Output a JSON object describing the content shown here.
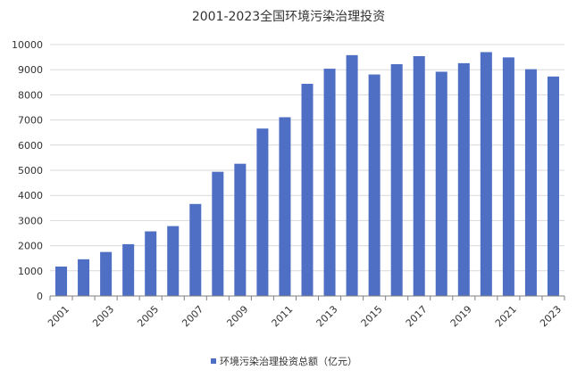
{
  "chart_data": {
    "type": "bar",
    "title": "2001-2023全国环境污染治理投资",
    "xlabel": "",
    "ylabel": "",
    "ylim": [
      0,
      10000
    ],
    "yticks": [
      0,
      1000,
      2000,
      3000,
      4000,
      5000,
      6000,
      7000,
      8000,
      9000,
      10000
    ],
    "categories": [
      "2001",
      "2002",
      "2003",
      "2004",
      "2005",
      "2006",
      "2007",
      "2008",
      "2009",
      "2010",
      "2011",
      "2012",
      "2013",
      "2014",
      "2015",
      "2016",
      "2017",
      "2018",
      "2019",
      "2020",
      "2021",
      "2022",
      "2023"
    ],
    "xtick_labels_shown": [
      "2001",
      "2003",
      "2005",
      "2007",
      "2009",
      "2011",
      "2013",
      "2015",
      "2017",
      "2019",
      "2021",
      "2023"
    ],
    "series": [
      {
        "name": "环境污染治理投资总额（亿元）",
        "color": "#4f6fc5",
        "values": [
          1170,
          1460,
          1750,
          2060,
          2570,
          2780,
          3660,
          4940,
          5260,
          6660,
          7110,
          8440,
          9040,
          9580,
          8810,
          9220,
          9540,
          8920,
          9260,
          9700,
          9490,
          9020,
          8730
        ]
      }
    ],
    "grid": true,
    "legend_position": "bottom"
  }
}
